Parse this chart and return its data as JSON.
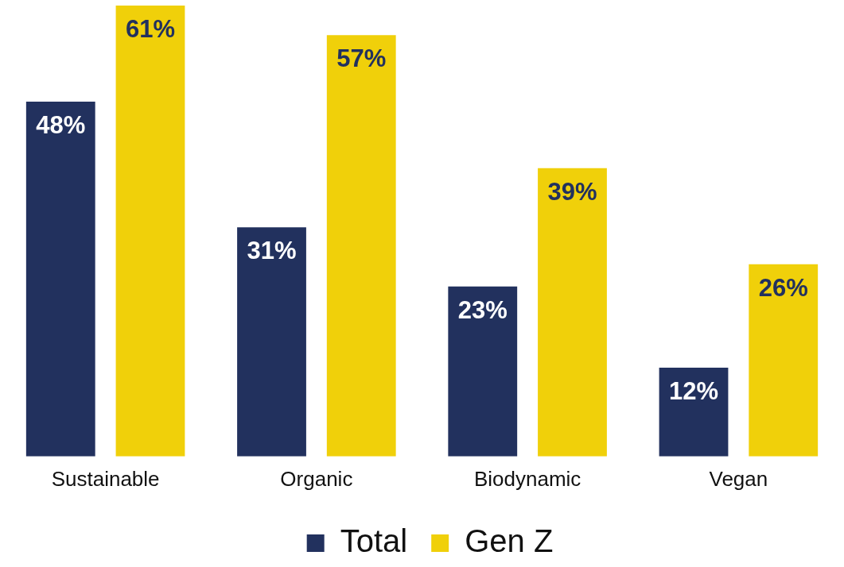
{
  "chart_data": {
    "type": "bar",
    "categories": [
      "Sustainable",
      "Organic",
      "Biodynamic",
      "Vegan"
    ],
    "series": [
      {
        "name": "Total",
        "color": "#22315e",
        "values": [
          48,
          31,
          23,
          12
        ],
        "value_labels": [
          "48%",
          "31%",
          "23%",
          "12%"
        ]
      },
      {
        "name": "Gen Z",
        "color": "#f0d00a",
        "values": [
          61,
          57,
          39,
          26
        ],
        "value_labels": [
          "61%",
          "57%",
          "39%",
          "26%"
        ]
      }
    ],
    "legend": "bottom",
    "grid": false
  }
}
